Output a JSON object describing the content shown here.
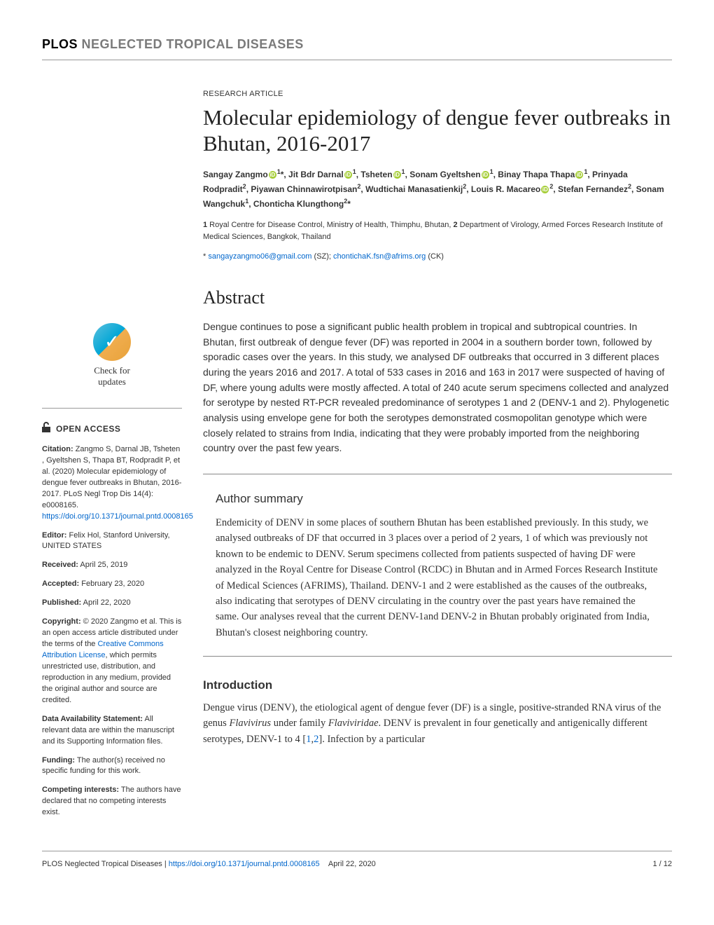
{
  "journal": {
    "prefix": "PLOS",
    "suffix": "NEGLECTED TROPICAL DISEASES"
  },
  "article": {
    "type": "RESEARCH ARTICLE",
    "title": "Molecular epidemiology of dengue fever outbreaks in Bhutan, 2016-2017",
    "authors_html": "Sangay Zangmo<span class='orcid'>iD</span><sup>1</sup>*, Jit Bdr Darnal<span class='orcid'>iD</span><sup>1</sup>,  Tsheten<span class='orcid'>iD</span><sup>1</sup>, Sonam Gyeltshen<span class='orcid'>iD</span><sup>1</sup>, Binay Thapa Thapa<span class='orcid'>iD</span><sup>1</sup>, Prinyada Rodpradit<sup>2</sup>, Piyawan Chinnawirotpisan<sup>2</sup>, Wudtichai Manasatienkij<sup>2</sup>, Louis R. Macareo<span class='orcid'>iD</span><sup>2</sup>, Stefan Fernandez<sup>2</sup>, Sonam Wangchuk<sup>1</sup>, Chonticha Klungthong<sup>2</sup>*",
    "affiliations": "1 Royal Centre for Disease Control, Ministry of Health, Thimphu, Bhutan, 2 Department of Virology, Armed Forces Research Institute of Medical Sciences, Bangkok, Thailand",
    "corr_prefix": "* ",
    "email1": "sangayzangmo06@gmail.com",
    "email1_suffix": " (SZ); ",
    "email2": "chontichaK.fsn@afrims.org",
    "email2_suffix": " (CK)"
  },
  "abstract": {
    "heading": "Abstract",
    "text": "Dengue continues to pose a significant public health problem in tropical and subtropical countries. In Bhutan, first outbreak of dengue fever (DF) was reported in 2004 in a southern border town, followed by sporadic cases over the years. In this study, we analysed DF outbreaks that occurred in 3 different places during the years 2016 and 2017. A total of 533 cases in 2016 and 163 in 2017 were suspected of having of DF, where young adults were mostly affected. A total of 240 acute serum specimens collected and analyzed for serotype by nested RT-PCR revealed predominance of serotypes 1 and 2 (DENV-1 and 2). Phylogenetic analysis using envelope gene for both the serotypes demonstrated cosmopolitan genotype which were closely related to strains from India, indicating that they were probably imported from the neighboring country over the past few years."
  },
  "summary": {
    "heading": "Author summary",
    "text": "Endemicity of DENV in some places of southern Bhutan has been established previously. In this study, we analysed outbreaks of DF that occurred in 3 places over a period of 2 years, 1 of which was previously not known to be endemic to DENV. Serum specimens collected from patients suspected of having DF were analyzed in the Royal Centre for Disease Control (RCDC) in Bhutan and in Armed Forces Research Institute of Medical Sciences (AFRIMS), Thailand. DENV-1 and 2 were established as the causes of the outbreaks, also indicating that serotypes of DENV circulating in the country over the past years have remained the same. Our analyses reveal that the current DENV-1and DENV-2 in Bhutan probably originated from India, Bhutan's closest neighboring country."
  },
  "intro": {
    "heading": "Introduction",
    "text_html": "Dengue virus (DENV), the etiological agent of dengue fever (DF) is a single, positive-stranded RNA virus of the genus <span class='italic'>Flavivirus</span> under family <span class='italic'>Flaviviridae</span>. DENV is prevalent in four genetically and antigenically different serotypes, DENV-1 to 4 [<span class='ref-link'>1</span>,<span class='ref-link'>2</span>]. Infection by a particular"
  },
  "sidebar": {
    "check_updates": "Check for updates",
    "open_access": "OPEN ACCESS",
    "citation": {
      "label": "Citation:",
      "text": " Zangmo S, Darnal JB, Tsheten , Gyeltshen S, Thapa BT, Rodpradit P, et al. (2020) Molecular epidemiology of dengue fever outbreaks in Bhutan, 2016-2017. PLoS Negl Trop Dis 14(4): e0008165. ",
      "doi": "https://doi.org/10.1371/journal.pntd.0008165"
    },
    "editor": {
      "label": "Editor:",
      "text": " Felix Hol, Stanford University, UNITED STATES"
    },
    "received": {
      "label": "Received:",
      "text": " April 25, 2019"
    },
    "accepted": {
      "label": "Accepted:",
      "text": " February 23, 2020"
    },
    "published": {
      "label": "Published:",
      "text": " April 22, 2020"
    },
    "copyright": {
      "label": "Copyright:",
      "text1": " © 2020 Zangmo et al. This is an open access article distributed under the terms of the ",
      "link": "Creative Commons Attribution License",
      "text2": ", which permits unrestricted use, distribution, and reproduction in any medium, provided the original author and source are credited."
    },
    "data": {
      "label": "Data Availability Statement:",
      "text": " All relevant data are within the manuscript and its Supporting Information files."
    },
    "funding": {
      "label": "Funding:",
      "text": " The author(s) received no specific funding for this work."
    },
    "competing": {
      "label": "Competing interests:",
      "text": " The authors have declared that no competing interests exist."
    }
  },
  "footer": {
    "journal": "PLOS Neglected Tropical Diseases | ",
    "doi": "https://doi.org/10.1371/journal.pntd.0008165",
    "date": "April 22, 2020",
    "page": "1 / 12"
  },
  "colors": {
    "link": "#0066cc",
    "text": "#333333",
    "gray": "#7a7a7a",
    "orcid": "#a6ce39"
  }
}
